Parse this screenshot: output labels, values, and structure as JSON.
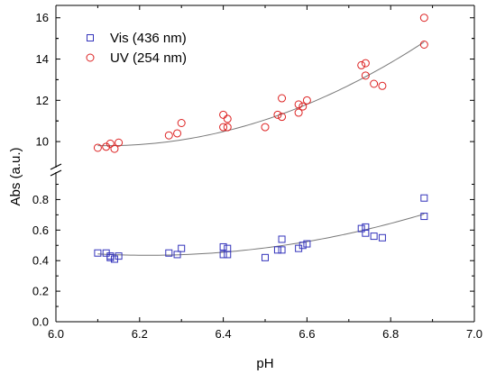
{
  "chart_data": {
    "type": "scatter",
    "title": "",
    "xlabel": "pH",
    "ylabel": "Abs (a.u.)",
    "xlim": [
      6.0,
      7.0
    ],
    "x_ticks": [
      "6.0",
      "6.2",
      "6.4",
      "6.6",
      "6.8",
      "7.0"
    ],
    "x_tick_values": [
      6.0,
      6.2,
      6.4,
      6.6,
      6.8,
      7.0
    ],
    "y_axis_break": true,
    "lower_panel": {
      "ylim": [
        0.0,
        0.95
      ],
      "y_ticks": [
        "0.0",
        "0.2",
        "0.4",
        "0.6",
        "0.8"
      ],
      "y_tick_values": [
        0.0,
        0.2,
        0.4,
        0.6,
        0.8
      ]
    },
    "upper_panel": {
      "ylim": [
        9.0,
        16.6
      ],
      "y_ticks": [
        "10",
        "12",
        "14",
        "16"
      ],
      "y_tick_values": [
        10,
        12,
        14,
        16
      ]
    },
    "legend_position": "top-left",
    "series": [
      {
        "name": "Vis (436 nm)",
        "marker": "square",
        "color": "#3333bb",
        "panel": "lower",
        "points": [
          [
            6.1,
            0.45
          ],
          [
            6.12,
            0.45
          ],
          [
            6.13,
            0.42
          ],
          [
            6.13,
            0.43
          ],
          [
            6.14,
            0.41
          ],
          [
            6.15,
            0.43
          ],
          [
            6.27,
            0.45
          ],
          [
            6.29,
            0.44
          ],
          [
            6.3,
            0.48
          ],
          [
            6.4,
            0.49
          ],
          [
            6.4,
            0.44
          ],
          [
            6.41,
            0.48
          ],
          [
            6.41,
            0.44
          ],
          [
            6.5,
            0.42
          ],
          [
            6.53,
            0.47
          ],
          [
            6.54,
            0.54
          ],
          [
            6.54,
            0.47
          ],
          [
            6.58,
            0.48
          ],
          [
            6.59,
            0.5
          ],
          [
            6.6,
            0.51
          ],
          [
            6.73,
            0.61
          ],
          [
            6.74,
            0.62
          ],
          [
            6.74,
            0.58
          ],
          [
            6.76,
            0.56
          ],
          [
            6.78,
            0.55
          ],
          [
            6.88,
            0.81
          ],
          [
            6.88,
            0.69
          ]
        ],
        "fit": {
          "type": "quadratic",
          "vertex_x": 6.22,
          "vertex_y": 0.435,
          "a": 0.62
        }
      },
      {
        "name": "UV (254 nm)",
        "marker": "circle",
        "color": "#dd2222",
        "panel": "upper",
        "points": [
          [
            6.1,
            9.7
          ],
          [
            6.12,
            9.75
          ],
          [
            6.13,
            9.9
          ],
          [
            6.14,
            9.65
          ],
          [
            6.15,
            9.95
          ],
          [
            6.27,
            10.3
          ],
          [
            6.29,
            10.4
          ],
          [
            6.3,
            10.9
          ],
          [
            6.4,
            11.3
          ],
          [
            6.4,
            10.7
          ],
          [
            6.41,
            11.1
          ],
          [
            6.41,
            10.7
          ],
          [
            6.5,
            10.7
          ],
          [
            6.53,
            11.3
          ],
          [
            6.54,
            12.1
          ],
          [
            6.54,
            11.2
          ],
          [
            6.58,
            11.8
          ],
          [
            6.58,
            11.4
          ],
          [
            6.59,
            11.7
          ],
          [
            6.6,
            12.0
          ],
          [
            6.73,
            13.7
          ],
          [
            6.74,
            13.8
          ],
          [
            6.74,
            13.2
          ],
          [
            6.76,
            12.8
          ],
          [
            6.78,
            12.7
          ],
          [
            6.88,
            16.0
          ],
          [
            6.88,
            14.7
          ]
        ],
        "fit": {
          "type": "quadratic",
          "vertex_x": 6.12,
          "vertex_y": 9.8,
          "a": 8.7
        }
      }
    ],
    "fit_line_color": "#777777"
  }
}
